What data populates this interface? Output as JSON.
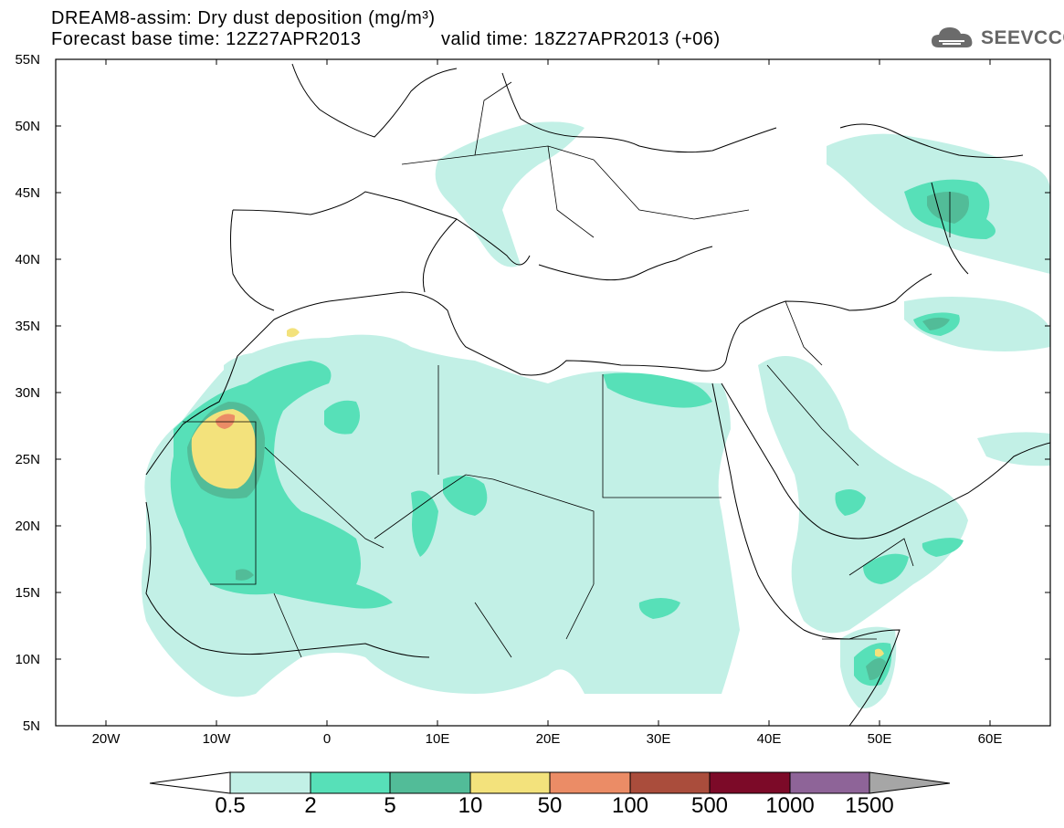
{
  "title": {
    "line1": "DREAM8-assim: Dry dust deposition (mg/m³)",
    "line2_left": "Forecast base time: 12Z27APR2013",
    "line2_right": "valid time: 18Z27APR2013 (+06)"
  },
  "logo": {
    "text": "SEEVCCC",
    "icon": "cloud-icon"
  },
  "axes": {
    "lat_labels": [
      "55N",
      "50N",
      "45N",
      "40N",
      "35N",
      "30N",
      "25N",
      "20N",
      "15N",
      "10N",
      "5N"
    ],
    "lon_labels": [
      "20W",
      "10W",
      "0",
      "10E",
      "20E",
      "30E",
      "40E",
      "50E",
      "60E"
    ],
    "lat_range": [
      5,
      55
    ],
    "lon_range": [
      -25,
      65
    ]
  },
  "colorbar": {
    "labels": [
      "0.5",
      "2",
      "5",
      "10",
      "50",
      "100",
      "500",
      "1000",
      "1500"
    ],
    "colors": [
      "#c2f0e6",
      "#57e0b8",
      "#52bc98",
      "#f3e27c",
      "#eb8c66",
      "#aa4d3c",
      "#7c0a28",
      "#8e6498",
      "#a6a6a6"
    ]
  },
  "map": {
    "land_color": "#ffffff",
    "border_color": "#000000"
  }
}
